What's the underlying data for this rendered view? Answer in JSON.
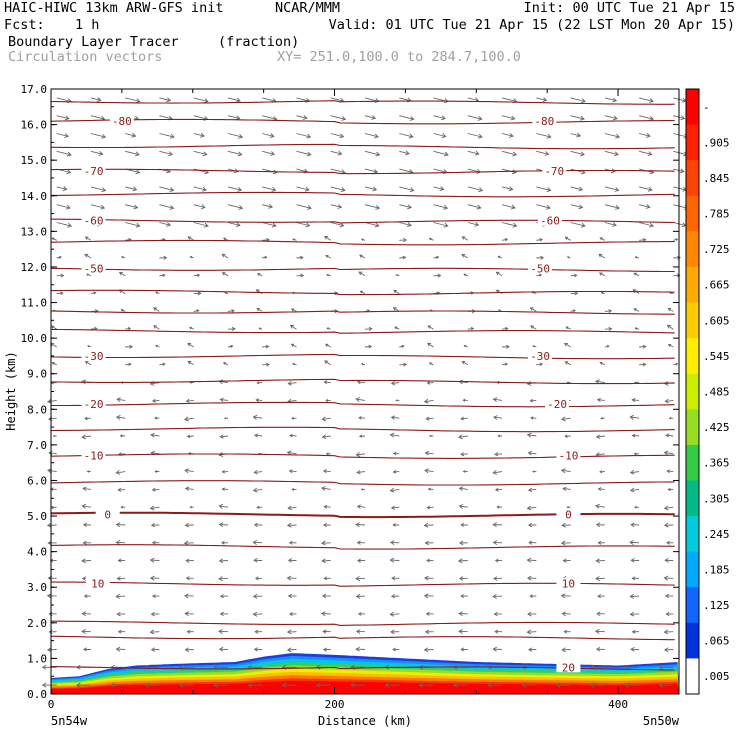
{
  "header": {
    "model": "HAIC-HIWC 13km ARW-GFS init",
    "org": "NCAR/MMM",
    "init": "Init: 00 UTC Tue 21 Apr 15",
    "fcst_label": "Fcst:",
    "fcst_value": "1 h",
    "valid": "Valid: 01 UTC Tue 21 Apr 15 (22 LST Mon 20 Apr 15)",
    "field": "Boundary Layer Tracer",
    "units": "(fraction)",
    "overlay": "Circulation vectors",
    "xy": "XY= 251.0,100.0 to 284.7,100.0"
  },
  "chart_data": {
    "type": "cross-section",
    "title": "Boundary Layer Tracer",
    "xlabel": "Distance (km)",
    "ylabel": "Height (km)",
    "xlim": [
      0,
      443
    ],
    "ylim": [
      0,
      17
    ],
    "x_ticks": [
      0,
      200,
      400
    ],
    "y_ticks": [
      0.0,
      1.0,
      2.0,
      3.0,
      4.0,
      5.0,
      6.0,
      7.0,
      8.0,
      9.0,
      10.0,
      11.0,
      12.0,
      13.0,
      14.0,
      15.0,
      16.0,
      17.0
    ],
    "x_end_labels": {
      "left": "5n54w",
      "right": "5n50w"
    },
    "colorbar": {
      "labels": [
        "-",
        ".905",
        ".845",
        ".785",
        ".725",
        ".665",
        ".605",
        ".545",
        ".485",
        ".425",
        ".365",
        ".305",
        ".245",
        ".185",
        ".125",
        ".065",
        ".005"
      ],
      "colors": [
        "#ff0000",
        "#ff2200",
        "#ff4400",
        "#ff6600",
        "#ff8800",
        "#ffaa00",
        "#ffcc00",
        "#ffee00",
        "#ccee00",
        "#99dd22",
        "#33cc44",
        "#00bb88",
        "#00ccdd",
        "#00aaff",
        "#1166ff",
        "#0033dd",
        "#ffffff"
      ]
    },
    "temperature_contours": {
      "color": "#8b1a1a",
      "levels": [
        {
          "value": "-80",
          "height": 16.1,
          "labels": [
            {
              "x": 50
            },
            {
              "x": 348
            }
          ]
        },
        {
          "value": "-70",
          "height": 14.7,
          "labels": [
            {
              "x": 30
            },
            {
              "x": 355
            }
          ]
        },
        {
          "value": "-60",
          "height": 13.3,
          "labels": [
            {
              "x": 30
            },
            {
              "x": 352
            }
          ]
        },
        {
          "value": "-50",
          "height": 11.95,
          "labels": [
            {
              "x": 30
            },
            {
              "x": 345
            }
          ]
        },
        {
          "value": "-30",
          "height": 9.5,
          "labels": [
            {
              "x": 30
            },
            {
              "x": 345
            }
          ]
        },
        {
          "value": "-20",
          "height": 8.15,
          "labels": [
            {
              "x": 30
            },
            {
              "x": 357
            }
          ]
        },
        {
          "value": "-10",
          "height": 6.7,
          "labels": [
            {
              "x": 30
            },
            {
              "x": 365
            }
          ]
        },
        {
          "value": "0",
          "height": 5.05,
          "labels": [
            {
              "x": 40
            },
            {
              "x": 365
            }
          ]
        },
        {
          "value": "10",
          "height": 3.1,
          "labels": [
            {
              "x": 33
            },
            {
              "x": 365
            }
          ]
        },
        {
          "value": "20",
          "height": 0.75,
          "labels": [
            {
              "x": 365
            }
          ]
        }
      ],
      "unlabeled_heights": [
        16.65,
        15.4,
        14.05,
        12.7,
        11.3,
        10.2,
        10.75,
        8.8,
        7.45,
        5.95,
        4.15,
        2.0,
        1.6
      ]
    },
    "tracer_profile": {
      "x": [
        0,
        20,
        40,
        60,
        90,
        130,
        150,
        170,
        200,
        250,
        300,
        350,
        400,
        443
      ],
      "top_height": [
        0.45,
        0.5,
        0.7,
        0.8,
        0.85,
        0.9,
        1.05,
        1.15,
        1.1,
        1.0,
        0.9,
        0.85,
        0.8,
        0.9
      ]
    }
  }
}
